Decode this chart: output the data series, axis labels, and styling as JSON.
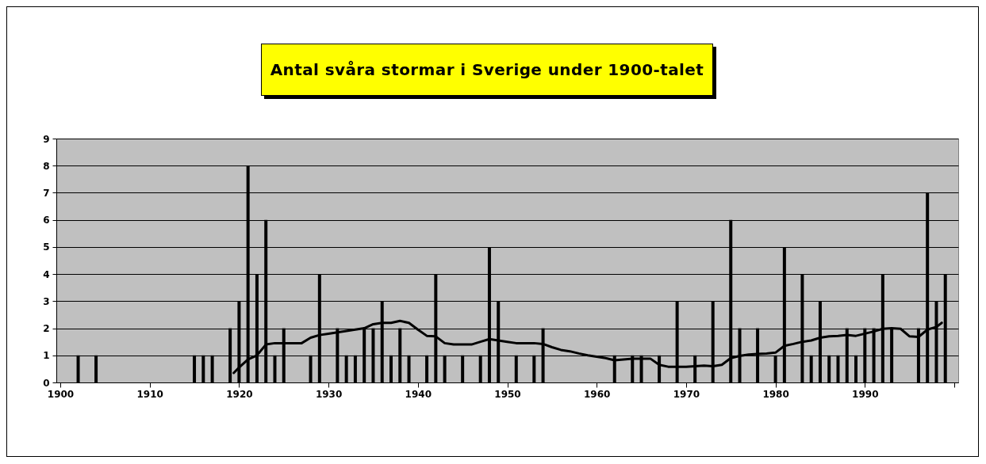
{
  "chart_data": {
    "type": "bar",
    "title": "Antal svåra stormar i Sverige under 1900-talet",
    "x": [
      1902,
      1904,
      1915,
      1916,
      1917,
      1919,
      1920,
      1921,
      1922,
      1923,
      1924,
      1925,
      1928,
      1929,
      1931,
      1932,
      1933,
      1934,
      1935,
      1936,
      1937,
      1938,
      1939,
      1941,
      1942,
      1943,
      1945,
      1947,
      1948,
      1949,
      1951,
      1953,
      1954,
      1962,
      1964,
      1965,
      1967,
      1969,
      1971,
      1973,
      1975,
      1976,
      1978,
      1980,
      1981,
      1983,
      1984,
      1985,
      1986,
      1987,
      1988,
      1989,
      1990,
      1991,
      1992,
      1993,
      1996,
      1997,
      1998,
      1999
    ],
    "series": [
      {
        "color": "#000000",
        "values": [
          1,
          1,
          1,
          1,
          1,
          2,
          3,
          8,
          4,
          6,
          1,
          2,
          1,
          4,
          2,
          1,
          1,
          2,
          2,
          3,
          1,
          2,
          1,
          1,
          4,
          1,
          1,
          1,
          5,
          3,
          1,
          1,
          2,
          1,
          1,
          1,
          1,
          3,
          1,
          3,
          6,
          2,
          2,
          1,
          5,
          4,
          1,
          3,
          1,
          1,
          2,
          1,
          2,
          2,
          4,
          2,
          2,
          7,
          3,
          4
        ]
      },
      {
        "type": "line",
        "color": "#000000",
        "x": [
          1919.4,
          1920,
          1921,
          1922,
          1923,
          1924,
          1925,
          1926,
          1927,
          1928,
          1929,
          1930,
          1931,
          1932,
          1933,
          1934,
          1935,
          1936,
          1937,
          1938,
          1939,
          1940,
          1941,
          1942,
          1943,
          1944,
          1945,
          1946,
          1947,
          1948,
          1949,
          1950,
          1951,
          1952,
          1953,
          1954,
          1955,
          1956,
          1957,
          1958,
          1959,
          1960,
          1961,
          1962,
          1963,
          1964,
          1965,
          1966,
          1967,
          1968,
          1969,
          1970,
          1971,
          1972,
          1973,
          1974,
          1975,
          1976,
          1977,
          1978,
          1979,
          1980,
          1981,
          1982,
          1983,
          1984,
          1985,
          1986,
          1987,
          1988,
          1989,
          1990,
          1991,
          1992,
          1993,
          1994,
          1995,
          1996,
          1997,
          1998,
          1998.6
        ],
        "values": [
          0.35,
          0.55,
          0.85,
          1.0,
          1.4,
          1.45,
          1.45,
          1.45,
          1.45,
          1.65,
          1.75,
          1.8,
          1.85,
          1.9,
          1.95,
          2.0,
          2.15,
          2.2,
          2.2,
          2.27,
          2.2,
          1.95,
          1.72,
          1.7,
          1.45,
          1.4,
          1.4,
          1.4,
          1.5,
          1.6,
          1.55,
          1.5,
          1.45,
          1.45,
          1.45,
          1.42,
          1.3,
          1.2,
          1.15,
          1.07,
          1.0,
          0.95,
          0.9,
          0.82,
          0.85,
          0.88,
          0.88,
          0.88,
          0.65,
          0.58,
          0.58,
          0.58,
          0.6,
          0.62,
          0.6,
          0.65,
          0.9,
          0.98,
          1.03,
          1.05,
          1.07,
          1.1,
          1.35,
          1.42,
          1.5,
          1.55,
          1.65,
          1.7,
          1.72,
          1.75,
          1.72,
          1.8,
          1.88,
          1.98,
          2.0,
          1.98,
          1.7,
          1.68,
          1.95,
          2.05,
          2.2
        ]
      }
    ],
    "xlim": [
      1900,
      2000
    ],
    "xticks": [
      1900,
      1910,
      1920,
      1930,
      1940,
      1950,
      1960,
      1970,
      1980,
      1990,
      {
        "value": 2000,
        "label": null
      }
    ],
    "ylim": [
      0,
      9
    ],
    "yticks": [
      0,
      1,
      2,
      3,
      4,
      5,
      6,
      7,
      8,
      9
    ],
    "grid": "y"
  }
}
